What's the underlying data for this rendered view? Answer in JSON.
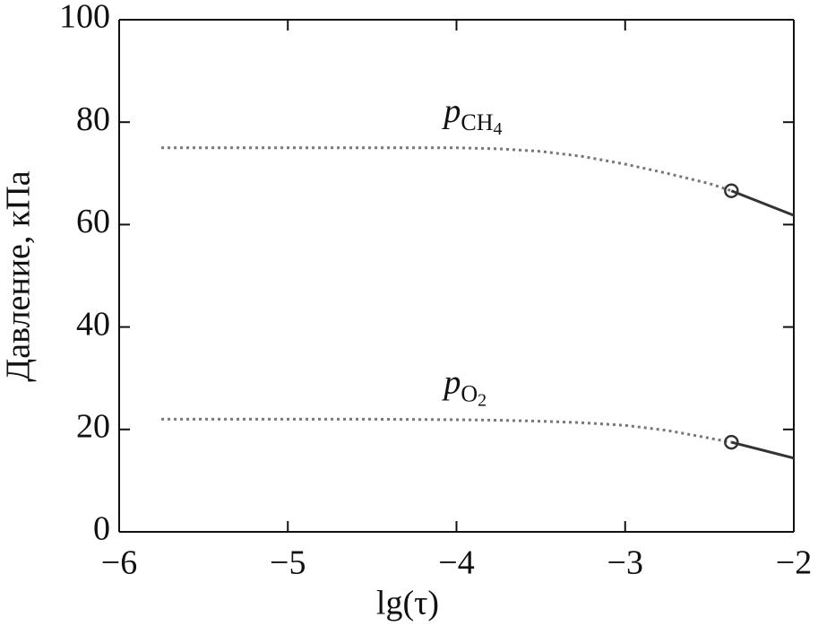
{
  "chart_data": {
    "type": "line",
    "xlabel": "lg(τ)",
    "ylabel": "Давление, кПа",
    "xlim": [
      -6,
      -2
    ],
    "xticks": [
      {
        "value": -6,
        "label": "−6"
      },
      {
        "value": -5,
        "label": "−5"
      },
      {
        "value": -4,
        "label": "−4"
      },
      {
        "value": -3,
        "label": "−3"
      },
      {
        "value": -2,
        "label": "−2"
      }
    ],
    "ylim": [
      0,
      100
    ],
    "yticks": [
      0,
      20,
      40,
      60,
      80,
      100
    ],
    "color": "#333333",
    "series": [
      {
        "symbol": "p",
        "sub": "CH",
        "subsub": "4",
        "segments": [
          {
            "style": "dotted",
            "x": [
              -5.75,
              -5.5,
              -5,
              -4.5,
              -4,
              -3.75,
              -3.5,
              -3.25,
              -3,
              -2.75,
              -2.5,
              -2.37
            ],
            "values": [
              75,
              75,
              75,
              75,
              75,
              74.8,
              74.3,
              73.3,
              71.8,
              70,
              68,
              66.6
            ]
          },
          {
            "style": "solid",
            "marker": "circle",
            "x": [
              -2.37,
              -2
            ],
            "values": [
              66.6,
              61.8
            ]
          }
        ]
      },
      {
        "symbol": "p",
        "sub": "O",
        "subsub": "2",
        "segments": [
          {
            "style": "dotted",
            "x": [
              -5.75,
              -5.5,
              -5,
              -4.5,
              -4,
              -3.75,
              -3.5,
              -3.25,
              -3,
              -2.75,
              -2.5,
              -2.37
            ],
            "values": [
              22,
              22,
              22,
              22,
              21.9,
              21.8,
              21.6,
              21.3,
              20.8,
              19.8,
              18.3,
              17.5
            ]
          },
          {
            "style": "solid",
            "marker": "circle",
            "x": [
              -2.37,
              -2
            ],
            "values": [
              17.5,
              14.4
            ]
          }
        ]
      }
    ]
  }
}
